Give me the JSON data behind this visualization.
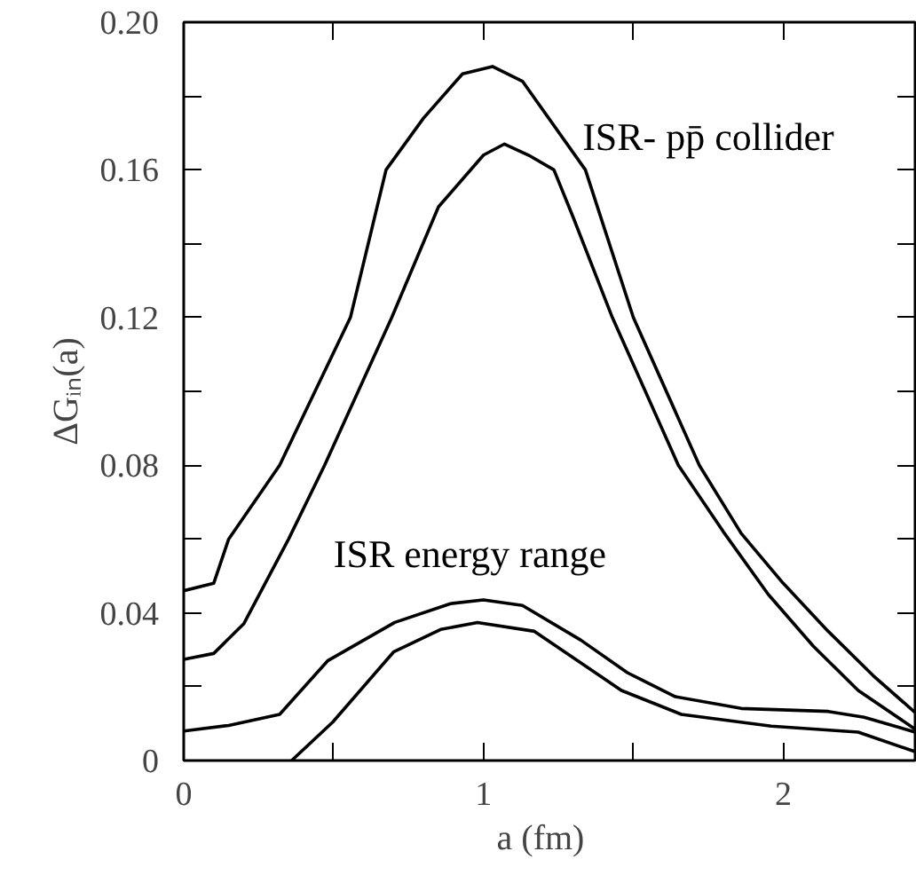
{
  "chart_data": {
    "type": "line",
    "xlabel": "a   (fm)",
    "ylabel": "ΔGᵢₙ(a)",
    "annotations": [
      "ISR- pp̄ collider",
      "ISR energy range"
    ],
    "xlim": [
      0,
      2.44
    ],
    "ylim": [
      0,
      0.2
    ],
    "xticks": [
      0,
      {
        "value": 0.5,
        "label": null
      },
      1,
      {
        "value": 1.5,
        "label": null
      },
      2
    ],
    "yticks": [
      0,
      {
        "value": 0.02,
        "label": null
      },
      {
        "value": 0.04,
        "label": "0.04"
      },
      {
        "value": 0.06,
        "label": null
      },
      {
        "value": 0.08,
        "label": "0.08"
      },
      {
        "value": 0.1,
        "label": null
      },
      {
        "value": 0.12,
        "label": "0.12"
      },
      {
        "value": 0.14,
        "label": null
      },
      {
        "value": 0.16,
        "label": "0.16"
      },
      {
        "value": 0.18,
        "label": null
      },
      {
        "value": 0.2,
        "label": "0.20"
      }
    ],
    "grid": false,
    "marker": "none",
    "line_style": "solid",
    "series": [
      {
        "color": "#000000",
        "x": [
          0,
          0.1,
          0.15,
          0.32,
          0.556,
          0.675,
          0.8,
          0.93,
          1.03,
          1.13,
          1.34,
          1.5,
          1.72,
          1.86,
          2.0,
          2.15,
          2.3,
          2.44
        ],
        "values": [
          0.046,
          0.048,
          0.06,
          0.08,
          0.12,
          0.16,
          0.174,
          0.186,
          0.188,
          0.184,
          0.16,
          0.12,
          0.08,
          0.0615,
          0.048,
          0.035,
          0.023,
          0.013
        ]
      },
      {
        "color": "#000000",
        "x": [
          0,
          0.1,
          0.2,
          0.35,
          0.47,
          0.694,
          0.85,
          1.0,
          1.07,
          1.15,
          1.235,
          1.3,
          1.43,
          1.65,
          1.8,
          1.95,
          2.1,
          2.25,
          2.44
        ],
        "values": [
          0.0274,
          0.029,
          0.037,
          0.06,
          0.08,
          0.12,
          0.15,
          0.164,
          0.167,
          0.164,
          0.16,
          0.147,
          0.12,
          0.08,
          0.062,
          0.045,
          0.031,
          0.019,
          0.0085
        ]
      },
      {
        "color": "#000000",
        "x": [
          0,
          0.15,
          0.32,
          0.48,
          0.704,
          0.89,
          1.0,
          1.13,
          1.325,
          1.48,
          1.64,
          1.86,
          2.15,
          2.27,
          2.44
        ],
        "values": [
          0.008,
          0.0095,
          0.0125,
          0.027,
          0.0374,
          0.0425,
          0.0435,
          0.042,
          0.0326,
          0.0238,
          0.0173,
          0.0141,
          0.0133,
          0.0117,
          0.0077
        ]
      },
      {
        "color": "#000000",
        "x": [
          0.36,
          0.497,
          0.7,
          0.857,
          0.98,
          1.17,
          1.46,
          1.66,
          1.96,
          2.25,
          2.44
        ],
        "values": [
          0,
          0.0104,
          0.0294,
          0.0355,
          0.0374,
          0.035,
          0.019,
          0.0125,
          0.0093,
          0.0077,
          0.0024
        ]
      }
    ]
  }
}
